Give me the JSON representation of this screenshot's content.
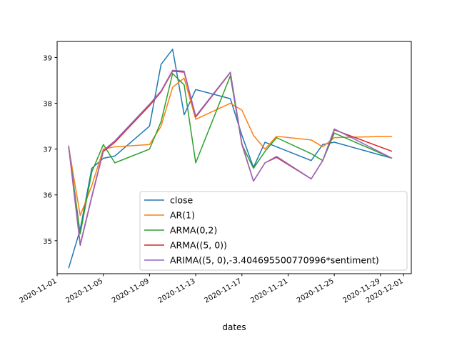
{
  "chart_data": {
    "type": "line",
    "xlabel": "dates",
    "ylabel": "",
    "title": "",
    "xlim": [
      "2020-11-01T00:00",
      "2020-12-01T16:00"
    ],
    "ylim": [
      34.28,
      39.35
    ],
    "grid": false,
    "legend_position": "lower-right",
    "x_ticks": [
      "2020-11-01",
      "2020-11-05",
      "2020-11-09",
      "2020-11-13",
      "2020-11-17",
      "2020-11-21",
      "2020-11-25",
      "2020-11-29",
      "2020-12-01"
    ],
    "y_ticks": [
      35,
      36,
      37,
      38,
      39
    ],
    "x": [
      "2020-11-02",
      "2020-11-03",
      "2020-11-04",
      "2020-11-05",
      "2020-11-06",
      "2020-11-09",
      "2020-11-10",
      "2020-11-11",
      "2020-11-12",
      "2020-11-13",
      "2020-11-16",
      "2020-11-17",
      "2020-11-18",
      "2020-11-19",
      "2020-11-20",
      "2020-11-23",
      "2020-11-24",
      "2020-11-25",
      "2020-11-30"
    ],
    "series": [
      {
        "name": "close",
        "color": "#1f77b4",
        "values": [
          34.4,
          35.25,
          36.58,
          36.8,
          36.85,
          37.5,
          38.85,
          39.18,
          37.75,
          38.3,
          38.1,
          37.3,
          36.6,
          37.15,
          37.05,
          36.75,
          37.1,
          37.15,
          36.8
        ]
      },
      {
        "name": "AR(1)",
        "color": "#ff7f0e",
        "values": [
          37.05,
          35.55,
          36.2,
          37.0,
          37.05,
          37.1,
          37.5,
          38.35,
          38.55,
          37.65,
          38.0,
          37.85,
          37.3,
          37.0,
          37.28,
          37.2,
          37.05,
          37.25,
          37.28
        ]
      },
      {
        "name": "ARMA(0,2)",
        "color": "#2ca02c",
        "values": [
          37.05,
          35.15,
          36.5,
          37.1,
          36.7,
          37.0,
          37.6,
          38.65,
          38.4,
          36.7,
          38.6,
          37.1,
          36.58,
          36.95,
          37.25,
          36.9,
          36.75,
          37.35,
          36.8
        ]
      },
      {
        "name": "ARMA((5, 0))",
        "color": "#d62728",
        "values": [
          37.05,
          34.9,
          35.95,
          36.95,
          37.15,
          37.95,
          38.25,
          38.7,
          38.68,
          37.7,
          38.67,
          37.1,
          36.3,
          36.7,
          36.82,
          36.35,
          36.75,
          37.42,
          36.95
        ]
      },
      {
        "name": "ARIMA((5, 0),-3.404695500770996*sentiment)",
        "color": "#9467bd",
        "values": [
          37.08,
          34.92,
          35.97,
          36.97,
          37.18,
          37.98,
          38.27,
          38.72,
          38.7,
          37.72,
          38.68,
          37.12,
          36.3,
          36.7,
          36.84,
          36.35,
          36.75,
          37.44,
          36.8
        ]
      }
    ]
  }
}
